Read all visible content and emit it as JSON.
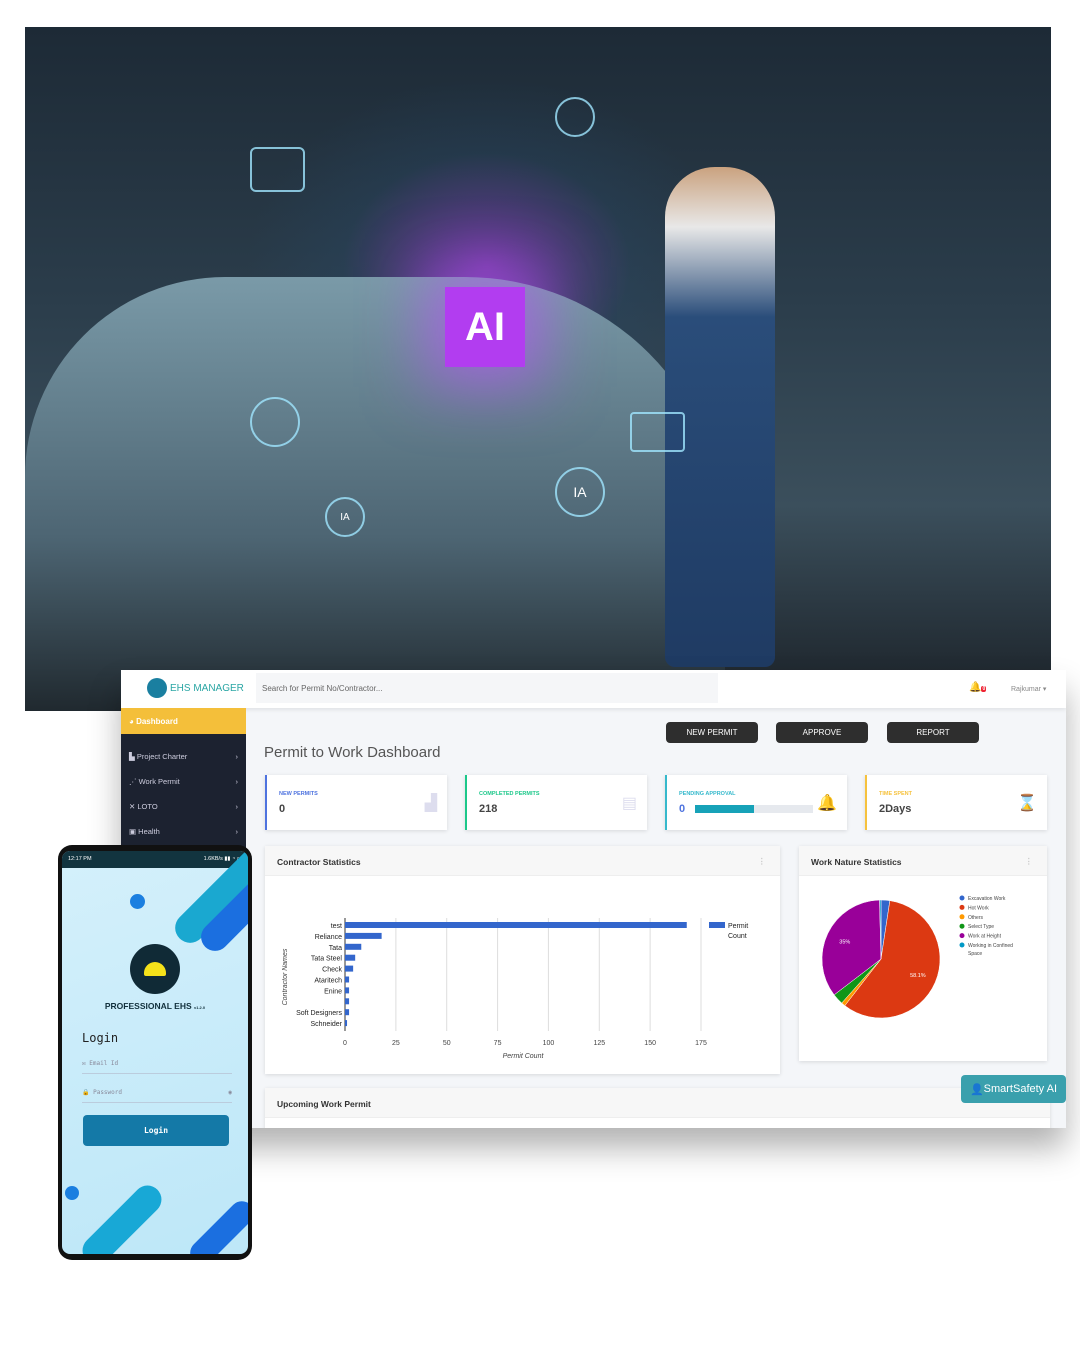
{
  "photo": {
    "hologram_label": "AI",
    "badges": [
      "IA",
      "IA"
    ]
  },
  "header": {
    "app_name": "EHS MANAGER",
    "search_placeholder": "Search for Permit No/Contractor...",
    "notification_count": "0",
    "user": "Rajkumar"
  },
  "sidebar": {
    "items": [
      {
        "label": "Dashboard",
        "icon": "dashboard-icon",
        "active": true
      },
      {
        "label": "Project Charter",
        "icon": "bar-chart-icon"
      },
      {
        "label": "Work Permit",
        "icon": "rss-icon"
      },
      {
        "label": "LOTO",
        "icon": "tools-icon"
      },
      {
        "label": "Health",
        "icon": "briefcase-icon"
      }
    ]
  },
  "page": {
    "title": "Permit to Work Dashboard",
    "buttons": {
      "new_permit": "NEW PERMIT",
      "approve": "APPROVE",
      "report": "REPORT"
    }
  },
  "cards": [
    {
      "label": "NEW PERMITS",
      "value": "0",
      "color": "#4e73df",
      "icon": "industry-icon"
    },
    {
      "label": "COMPLETED PERMITS",
      "value": "218",
      "color": "#1cc88a",
      "icon": "box-icon"
    },
    {
      "label": "PENDING APPROVAL",
      "value": "0",
      "color": "#36b9cc",
      "icon": "bell-icon",
      "progress_percent": 50
    },
    {
      "label": "TIME SPENT",
      "value": "2Days",
      "color": "#f6c23e",
      "icon": "hourglass-icon"
    }
  ],
  "panels": {
    "contractor": "Contractor Statistics",
    "work_nature": "Work Nature Statistics",
    "upcoming": "Upcoming Work Permit"
  },
  "chart_data": [
    {
      "type": "bar",
      "orientation": "horizontal",
      "categories": [
        "test",
        "Reliance",
        "Tata",
        "Tata Steel",
        "Check",
        "Ataritech",
        "Enine",
        "",
        "Soft Designers",
        "Schneider"
      ],
      "series": [
        {
          "name": "Permit Count",
          "values": [
            168,
            18,
            8,
            5,
            4,
            2,
            2,
            2,
            2,
            1
          ],
          "color": "#3366cc"
        }
      ],
      "xlabel": "Permit Count",
      "ylabel": "Contractor Names",
      "xlim": [
        0,
        175
      ],
      "xticks": [
        0,
        25,
        50,
        75,
        100,
        125,
        150,
        175
      ],
      "grid": true,
      "legend": "right"
    },
    {
      "type": "pie",
      "labels": [
        "Excavation Work",
        "Hot Work",
        "Others",
        "Select Type",
        "Work at Height",
        "Working in Confined Space"
      ],
      "values": [
        2.4,
        58.1,
        1.1,
        3.0,
        35.0,
        0.4
      ],
      "colors": [
        "#3366cc",
        "#dc3912",
        "#ff9900",
        "#109618",
        "#990099",
        "#0099c6"
      ],
      "data_labels": {
        "Hot Work": "58.1%",
        "Work at Height": "35%"
      },
      "legend": "right"
    }
  ],
  "assistant_button": "SmartSafety AI",
  "phone": {
    "time": "12:17 PM",
    "status_right": "1.6KB/s",
    "app_title": "PROFESSIONAL EHS",
    "version": "v1.2.0",
    "login_heading": "Login",
    "email_placeholder": "Email Id",
    "password_placeholder": "Password",
    "login_button": "Login"
  }
}
